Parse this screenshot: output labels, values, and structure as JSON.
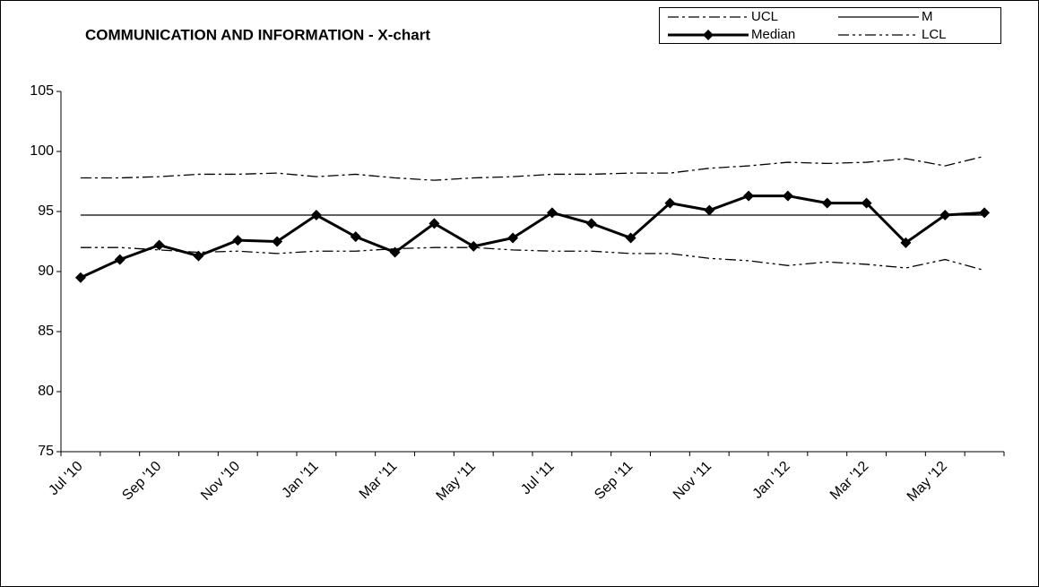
{
  "chart_data": {
    "type": "line",
    "title": "COMMUNICATION AND INFORMATION - X-chart",
    "categories": [
      "Jul '10",
      null,
      "Sep '10",
      null,
      "Nov '10",
      null,
      "Jan '11",
      null,
      "Mar '11",
      null,
      "May '11",
      null,
      "Jul '11",
      null,
      "Sep '11",
      null,
      "Nov '11",
      null,
      "Jan '12",
      null,
      "Mar '12",
      null,
      "May '12",
      null
    ],
    "series": [
      {
        "name": "UCL",
        "color": "#000000",
        "style": "dashdot",
        "values": [
          97.8,
          97.8,
          97.9,
          98.1,
          98.1,
          98.2,
          97.9,
          98.1,
          97.8,
          97.6,
          97.8,
          97.9,
          98.1,
          98.1,
          98.2,
          98.2,
          98.6,
          98.8,
          99.1,
          99.0,
          99.1,
          99.4,
          98.8,
          99.6
        ]
      },
      {
        "name": "M",
        "color": "#000000",
        "style": "solid",
        "values": [
          94.7,
          94.7,
          94.7,
          94.7,
          94.7,
          94.7,
          94.7,
          94.7,
          94.7,
          94.7,
          94.7,
          94.7,
          94.7,
          94.7,
          94.7,
          94.7,
          94.7,
          94.7,
          94.7,
          94.7,
          94.7,
          94.7,
          94.7,
          94.7
        ]
      },
      {
        "name": "Median",
        "color": "#000000",
        "style": "bold-diamond",
        "values": [
          89.5,
          91.0,
          92.2,
          91.3,
          92.6,
          92.5,
          94.7,
          92.9,
          91.6,
          94.0,
          92.1,
          92.8,
          94.9,
          94.0,
          92.8,
          95.7,
          95.1,
          96.3,
          96.3,
          95.7,
          95.7,
          92.4,
          94.7,
          94.9
        ]
      },
      {
        "name": "LCL",
        "color": "#000000",
        "style": "dashdotdot",
        "values": [
          92.0,
          92.0,
          91.8,
          91.6,
          91.7,
          91.5,
          91.7,
          91.7,
          91.9,
          92.0,
          92.0,
          91.8,
          91.7,
          91.7,
          91.5,
          91.5,
          91.1,
          90.9,
          90.5,
          90.8,
          90.6,
          90.3,
          91.0,
          90.1
        ]
      }
    ],
    "ylim": [
      75,
      105
    ],
    "yticks": [
      75,
      80,
      85,
      90,
      95,
      100,
      105
    ]
  }
}
